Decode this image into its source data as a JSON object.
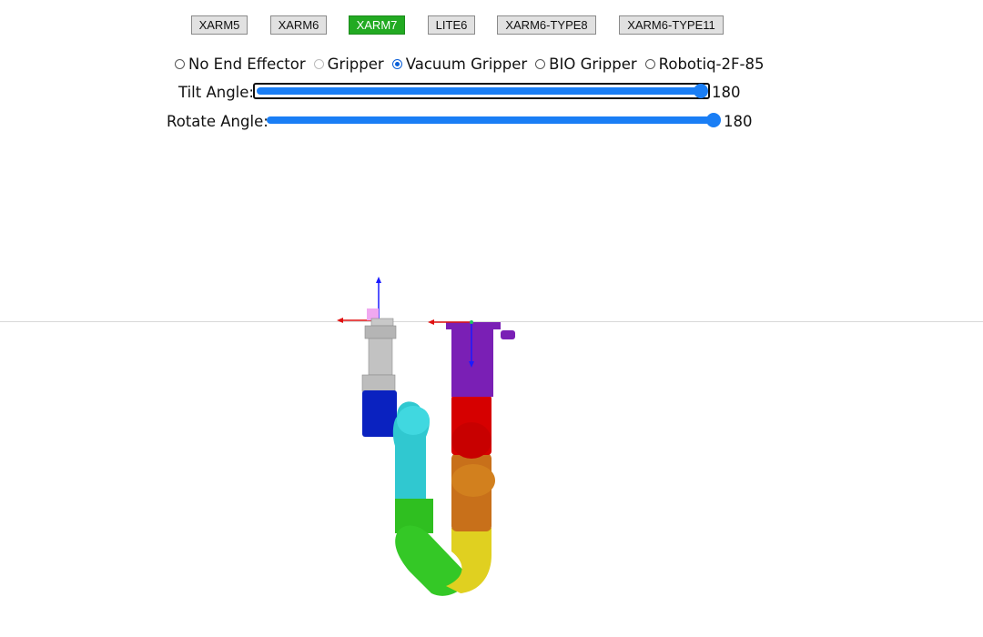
{
  "models": [
    {
      "label": "XARM5",
      "active": false
    },
    {
      "label": "XARM6",
      "active": false
    },
    {
      "label": "XARM7",
      "active": true
    },
    {
      "label": "LITE6",
      "active": false
    },
    {
      "label": "XARM6-TYPE8",
      "active": false
    },
    {
      "label": "XARM6-TYPE11",
      "active": false
    }
  ],
  "end_effectors": [
    {
      "label": "No End Effector",
      "checked": false,
      "disabled": false
    },
    {
      "label": "Gripper",
      "checked": false,
      "disabled": true
    },
    {
      "label": "Vacuum Gripper",
      "checked": true,
      "disabled": false
    },
    {
      "label": "BIO Gripper",
      "checked": false,
      "disabled": false
    },
    {
      "label": "Robotiq-2F-85",
      "checked": false,
      "disabled": false
    }
  ],
  "tilt": {
    "label": "Tilt Angle:",
    "value": "180"
  },
  "rotate": {
    "label": "Rotate Angle:",
    "value": "180"
  },
  "colors": {
    "accent": "#1a7ef5",
    "active_button": "#22aa22",
    "link_purple": "#7a1fb5",
    "link_red": "#d60000",
    "link_orange": "#c8701a",
    "link_yellow": "#e0d020",
    "link_green": "#2fbf20",
    "link_cyan": "#30c8d0",
    "link_blue": "#0a22c0",
    "gripper_gray": "#b8b8b8"
  }
}
